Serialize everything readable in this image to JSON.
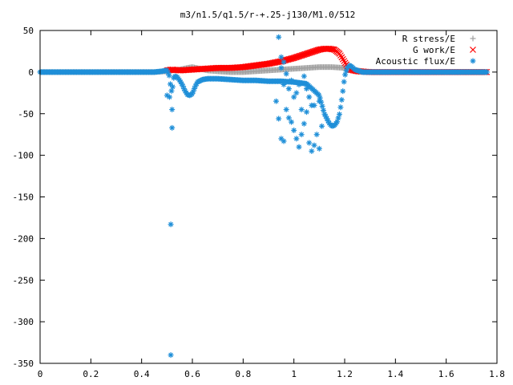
{
  "chart_data": {
    "type": "scatter",
    "title": "m3/n1.5/q1.5/r-+.25-j130/M1.0/512",
    "xlabel": "",
    "ylabel": "",
    "xlim": [
      0,
      1.8
    ],
    "ylim": [
      -350,
      50
    ],
    "x_ticks": [
      {
        "v": 0,
        "label": "0"
      },
      {
        "v": 0.2,
        "label": "0.2"
      },
      {
        "v": 0.4,
        "label": "0.4"
      },
      {
        "v": 0.6,
        "label": "0.6"
      },
      {
        "v": 0.8,
        "label": "0.8"
      },
      {
        "v": 1.0,
        "label": "1"
      },
      {
        "v": 1.2,
        "label": "1.2"
      },
      {
        "v": 1.4,
        "label": "1.4"
      },
      {
        "v": 1.6,
        "label": "1.6"
      },
      {
        "v": 1.8,
        "label": "1.8"
      }
    ],
    "y_ticks": [
      {
        "v": 50,
        "label": "50"
      },
      {
        "v": 0,
        "label": "0"
      },
      {
        "v": -50,
        "label": "-50"
      },
      {
        "v": -100,
        "label": "-100"
      },
      {
        "v": -150,
        "label": "-150"
      },
      {
        "v": -200,
        "label": "-200"
      },
      {
        "v": -250,
        "label": "-250"
      },
      {
        "v": -300,
        "label": "-300"
      },
      {
        "v": -350,
        "label": "-350"
      }
    ],
    "grid": false,
    "legend_position": "top-right",
    "series": [
      {
        "name": "R stress/E",
        "color": "#a0a0a0",
        "marker": "plus",
        "x": [
          0.0,
          0.2,
          0.4,
          0.45,
          0.5,
          0.52,
          0.55,
          0.58,
          0.6,
          0.63,
          0.66,
          0.7,
          0.75,
          0.8,
          0.85,
          0.9,
          0.95,
          1.0,
          1.05,
          1.1,
          1.15,
          1.2,
          1.25,
          1.3,
          1.4,
          1.5,
          1.6,
          1.7,
          1.76
        ],
        "y": [
          0,
          0,
          0,
          0,
          1,
          2,
          3,
          5,
          6,
          4,
          2,
          1,
          0,
          0,
          1,
          2,
          3,
          4,
          5,
          6,
          6,
          5,
          2,
          0,
          0,
          0,
          0,
          0,
          0
        ]
      },
      {
        "name": "G work/E",
        "color": "#ff0000",
        "marker": "cross",
        "x": [
          0.5,
          0.52,
          0.55,
          0.6,
          0.65,
          0.7,
          0.75,
          0.8,
          0.85,
          0.9,
          0.95,
          1.0,
          1.05,
          1.08,
          1.1,
          1.12,
          1.14,
          1.16,
          1.18,
          1.2,
          1.22,
          1.25,
          1.3,
          1.4,
          1.5,
          1.6,
          1.7,
          1.76
        ],
        "y": [
          2,
          3,
          2,
          3,
          4,
          5,
          5,
          6,
          8,
          10,
          13,
          17,
          22,
          25,
          27,
          28,
          28,
          27,
          22,
          12,
          3,
          1,
          0,
          0,
          0,
          0,
          0,
          0
        ]
      },
      {
        "name": "Acoustic flux/E",
        "color": "#1f8fd8",
        "marker": "asterisk",
        "x": [
          0.0,
          0.1,
          0.2,
          0.3,
          0.4,
          0.45,
          0.48,
          0.5,
          0.51,
          0.515,
          0.52,
          0.525,
          0.53,
          0.54,
          0.55,
          0.56,
          0.57,
          0.58,
          0.59,
          0.6,
          0.61,
          0.62,
          0.64,
          0.66,
          0.7,
          0.75,
          0.8,
          0.85,
          0.9,
          0.95,
          1.0,
          1.05,
          1.1,
          1.12,
          1.14,
          1.15,
          1.16,
          1.17,
          1.18,
          1.19,
          1.2,
          1.21,
          1.22,
          1.23,
          1.24,
          1.25,
          1.27,
          1.3,
          1.4,
          1.5,
          1.6,
          1.7,
          1.76
        ],
        "y": [
          0,
          0,
          0,
          0,
          0,
          0,
          1,
          2,
          -5,
          -20,
          -25,
          -8,
          -5,
          -6,
          -10,
          -15,
          -22,
          -27,
          -28,
          -26,
          -18,
          -12,
          -9,
          -8,
          -8,
          -9,
          -10,
          -10,
          -11,
          -11,
          -12,
          -14,
          -28,
          -50,
          -62,
          -65,
          -64,
          -60,
          -50,
          -30,
          -5,
          5,
          8,
          6,
          3,
          2,
          0,
          0,
          0,
          0,
          0,
          0,
          0
        ]
      },
      {
        "name": "",
        "color": "#1f8fd8",
        "marker": "asterisk",
        "x": [
          0.51,
          0.52,
          0.515,
          0.515,
          0.5,
          0.52,
          0.94,
          0.95,
          0.96,
          0.93,
          0.94,
          0.95,
          0.96,
          0.97,
          0.98,
          0.99,
          1.0,
          1.01,
          1.02,
          1.03,
          1.04,
          1.05,
          1.06,
          1.07,
          1.08,
          1.09,
          1.1,
          1.11,
          1.0,
          0.98,
          1.02,
          1.04,
          1.06,
          1.08,
          1.1,
          0.99,
          1.01,
          1.03,
          0.97,
          0.95,
          1.05,
          1.07,
          0.96
        ],
        "y": [
          -30,
          -67,
          -183,
          -340,
          -28,
          -45,
          42,
          18,
          12,
          -35,
          -56,
          -80,
          -83,
          -45,
          -55,
          -60,
          -70,
          -80,
          -90,
          -75,
          -62,
          -48,
          -85,
          -95,
          -88,
          -75,
          -92,
          -65,
          -30,
          -20,
          -15,
          -5,
          -30,
          -40,
          -35,
          -10,
          -25,
          -45,
          -2,
          5,
          -20,
          -40,
          -15
        ]
      }
    ]
  }
}
